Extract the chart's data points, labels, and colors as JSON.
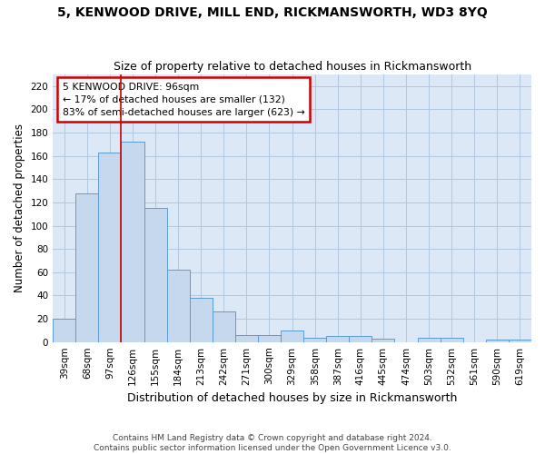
{
  "title": "5, KENWOOD DRIVE, MILL END, RICKMANSWORTH, WD3 8YQ",
  "subtitle": "Size of property relative to detached houses in Rickmansworth",
  "xlabel": "Distribution of detached houses by size in Rickmansworth",
  "ylabel": "Number of detached properties",
  "footer_line1": "Contains HM Land Registry data © Crown copyright and database right 2024.",
  "footer_line2": "Contains public sector information licensed under the Open Government Licence v3.0.",
  "categories": [
    "39sqm",
    "68sqm",
    "97sqm",
    "126sqm",
    "155sqm",
    "184sqm",
    "213sqm",
    "242sqm",
    "271sqm",
    "300sqm",
    "329sqm",
    "358sqm",
    "387sqm",
    "416sqm",
    "445sqm",
    "474sqm",
    "503sqm",
    "532sqm",
    "561sqm",
    "590sqm",
    "619sqm"
  ],
  "values": [
    20,
    128,
    163,
    172,
    115,
    62,
    38,
    26,
    6,
    6,
    10,
    4,
    5,
    5,
    3,
    0,
    4,
    4,
    0,
    2,
    2
  ],
  "bar_color": "#c5d8ee",
  "bar_edge_color": "#5b9bd5",
  "background_color": "#ffffff",
  "plot_bg_color": "#dce8f5",
  "grid_color": "#b0c8e0",
  "annotation_text_line1": "5 KENWOOD DRIVE: 96sqm",
  "annotation_text_line2": "← 17% of detached houses are smaller (132)",
  "annotation_text_line3": "83% of semi-detached houses are larger (623) →",
  "annotation_box_color": "#ffffff",
  "annotation_box_edge_color": "#cc0000",
  "vline_x_index": 2,
  "vline_color": "#cc0000",
  "ylim_max": 230,
  "yticks": [
    0,
    20,
    40,
    60,
    80,
    100,
    120,
    140,
    160,
    180,
    200,
    220
  ]
}
